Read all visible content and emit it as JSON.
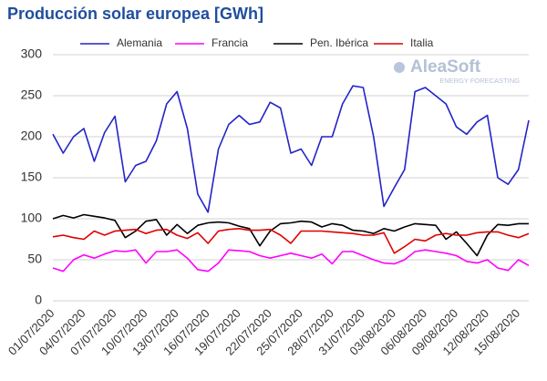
{
  "chart_data": {
    "type": "line",
    "title": "Producción solar europea [GWh]",
    "logo": {
      "name": "AleaSoft",
      "tagline": "ENERGY FORECASTING"
    },
    "categories": [
      "01/07/2020",
      null,
      null,
      "04/07/2020",
      null,
      null,
      "07/07/2020",
      null,
      null,
      "10/07/2020",
      null,
      null,
      "13/07/2020",
      null,
      null,
      "16/07/2020",
      null,
      null,
      "19/07/2020",
      null,
      null,
      "22/07/2020",
      null,
      null,
      "25/07/2020",
      null,
      null,
      "28/07/2020",
      null,
      null,
      "31/07/2020",
      null,
      null,
      "03/08/2020",
      null,
      null,
      "06/08/2020",
      null,
      null,
      "09/08/2020",
      null,
      null,
      "12/08/2020",
      null,
      null,
      "15/08/2020",
      null
    ],
    "series": [
      {
        "name": "Alemania",
        "color": "#2323c8",
        "values": [
          203,
          180,
          200,
          210,
          170,
          205,
          225,
          145,
          165,
          170,
          195,
          240,
          255,
          210,
          130,
          108,
          185,
          215,
          226,
          215,
          218,
          242,
          235,
          180,
          185,
          165,
          200,
          200,
          240,
          262,
          260,
          200,
          115,
          138,
          160,
          255,
          260,
          250,
          240,
          212,
          203,
          218,
          226,
          150,
          142,
          160,
          220
        ]
      },
      {
        "name": "Francia",
        "color": "#ff00ff",
        "values": [
          40,
          36,
          50,
          56,
          52,
          57,
          61,
          60,
          62,
          46,
          60,
          60,
          62,
          52,
          38,
          36,
          46,
          62,
          61,
          60,
          55,
          52,
          55,
          58,
          55,
          52,
          57,
          45,
          60,
          60,
          55,
          50,
          46,
          45,
          50,
          60,
          62,
          60,
          58,
          55,
          48,
          46,
          50,
          40,
          37,
          50,
          43
        ]
      },
      {
        "name": "Pen. Ibérica",
        "color": "#000000",
        "values": [
          100,
          104,
          101,
          105,
          103,
          101,
          98,
          77,
          85,
          97,
          99,
          80,
          93,
          82,
          92,
          95,
          96,
          95,
          91,
          88,
          67,
          85,
          94,
          95,
          97,
          96,
          90,
          94,
          92,
          86,
          85,
          82,
          88,
          85,
          90,
          94,
          93,
          92,
          75,
          84,
          70,
          55,
          80,
          93,
          92,
          94,
          94
        ]
      },
      {
        "name": "Italia",
        "color": "#e00000",
        "values": [
          78,
          80,
          77,
          75,
          85,
          80,
          85,
          86,
          87,
          82,
          86,
          87,
          80,
          76,
          83,
          70,
          85,
          87,
          88,
          86,
          86,
          87,
          80,
          70,
          85,
          85,
          85,
          84,
          83,
          82,
          80,
          80,
          83,
          58,
          66,
          75,
          73,
          80,
          82,
          80,
          80,
          83,
          84,
          84,
          80,
          77,
          82
        ]
      }
    ],
    "ylim": [
      0,
      300
    ],
    "yticks": [
      0,
      50,
      100,
      150,
      200,
      250,
      300
    ],
    "grid": true,
    "legend": "top"
  }
}
